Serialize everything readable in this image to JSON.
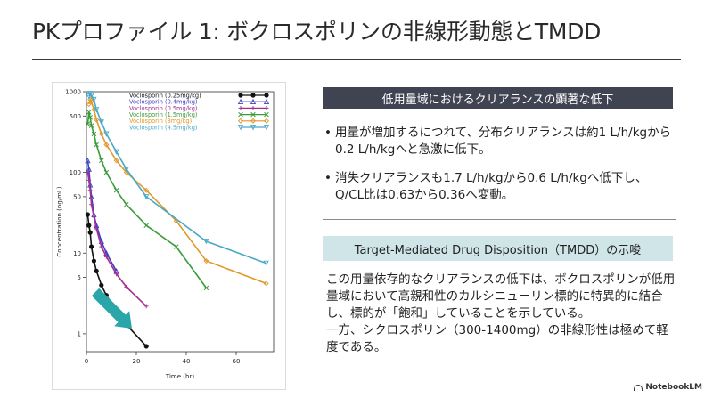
{
  "slide": {
    "title": "PKプロファイル 1: ボクロスポリンの非線形動態とTMDD"
  },
  "section1": {
    "heading": "低用量域におけるクリアランスの顕著な低下",
    "bullets": [
      "用量が増加するにつれて、分布クリアランスは約1 L/h/kgから0.2 L/h/kgへと急激に低下。",
      "消失クリアランスも1.7 L/h/kgから0.6 L/h/kgへ低下し、Q/CL比は0.63から0.36へ変動。"
    ]
  },
  "section2": {
    "heading": "Target-Mediated Drug Disposition（TMDD）の示唆",
    "paragraphs": [
      "この用量依存的なクリアランスの低下は、ボクロスポリンが低用量域において高親和性のカルシニューリン標的に特異的に結合し、標的が「飽和」していることを示している。",
      "一方、シクロスポリン（300-1400mg）の非線形性は極めて軽度である。"
    ]
  },
  "brand": {
    "label": "NotebookLM",
    "icon": "notebooklm-logo-icon"
  },
  "chart_data": {
    "type": "line",
    "xlabel": "Time (hr)",
    "ylabel": "Concentration (ng/mL)",
    "xlim": [
      0,
      75
    ],
    "ylim": [
      0.6,
      1000
    ],
    "y_scale": "log",
    "x_ticks": [
      0,
      20,
      40,
      60
    ],
    "y_ticks": [
      1,
      5,
      10,
      50,
      100,
      500,
      1000
    ],
    "y_tick_labels": [
      "1",
      "5",
      "10",
      "50",
      "100",
      "500",
      "1000"
    ],
    "legend_position": "top-right",
    "annotation": {
      "type": "arrow",
      "direction": "down-right",
      "color": "#2aa6a8"
    },
    "series": [
      {
        "name": "Voclosporin (0.25mg/kg)",
        "color": "#111111",
        "marker": "circle",
        "x": [
          0.5,
          1,
          1.5,
          2,
          3,
          4,
          6,
          8,
          12,
          16,
          24
        ],
        "y": [
          30,
          22,
          18,
          12,
          8,
          6,
          4,
          3,
          1.9,
          1.3,
          0.7
        ]
      },
      {
        "name": "Voclosporin (0.4mg/kg)",
        "color": "#3d3fc4",
        "marker": "triangle",
        "x": [
          0.5,
          1,
          1.5,
          2,
          3,
          4,
          6,
          8,
          12
        ],
        "y": [
          140,
          110,
          70,
          50,
          30,
          22,
          14,
          10,
          6
        ]
      },
      {
        "name": "Voclosporin (0.5mg/kg)",
        "color": "#a4308f",
        "marker": "plus",
        "x": [
          0.5,
          1,
          1.5,
          2,
          3,
          4,
          6,
          8,
          12,
          16,
          24
        ],
        "y": [
          100,
          80,
          60,
          40,
          28,
          20,
          12,
          9,
          5.5,
          3.8,
          2.2
        ]
      },
      {
        "name": "Voclosporin (1.5mg/kg)",
        "color": "#3a9b3a",
        "marker": "cross",
        "x": [
          0.5,
          1,
          1.5,
          2,
          3,
          4,
          6,
          8,
          12,
          16,
          24,
          36,
          48
        ],
        "y": [
          400,
          560,
          480,
          380,
          300,
          220,
          140,
          100,
          60,
          40,
          22,
          12,
          3.7
        ]
      },
      {
        "name": "Voclosporin (3mg/kg)",
        "color": "#e0982a",
        "marker": "diamond",
        "x": [
          1,
          1.5,
          2,
          3,
          4,
          6,
          8,
          12,
          16,
          24,
          36,
          48,
          72
        ],
        "y": [
          700,
          800,
          750,
          600,
          450,
          300,
          220,
          140,
          100,
          60,
          25,
          8,
          4.2
        ]
      },
      {
        "name": "Voclosporin (4.5mg/kg)",
        "color": "#49a9c8",
        "marker": "triangle-down",
        "x": [
          1,
          1.5,
          2,
          3,
          4,
          6,
          8,
          12,
          16,
          24,
          48,
          72
        ],
        "y": [
          880,
          950,
          900,
          800,
          600,
          420,
          300,
          180,
          110,
          50,
          14,
          7.5
        ]
      }
    ]
  }
}
